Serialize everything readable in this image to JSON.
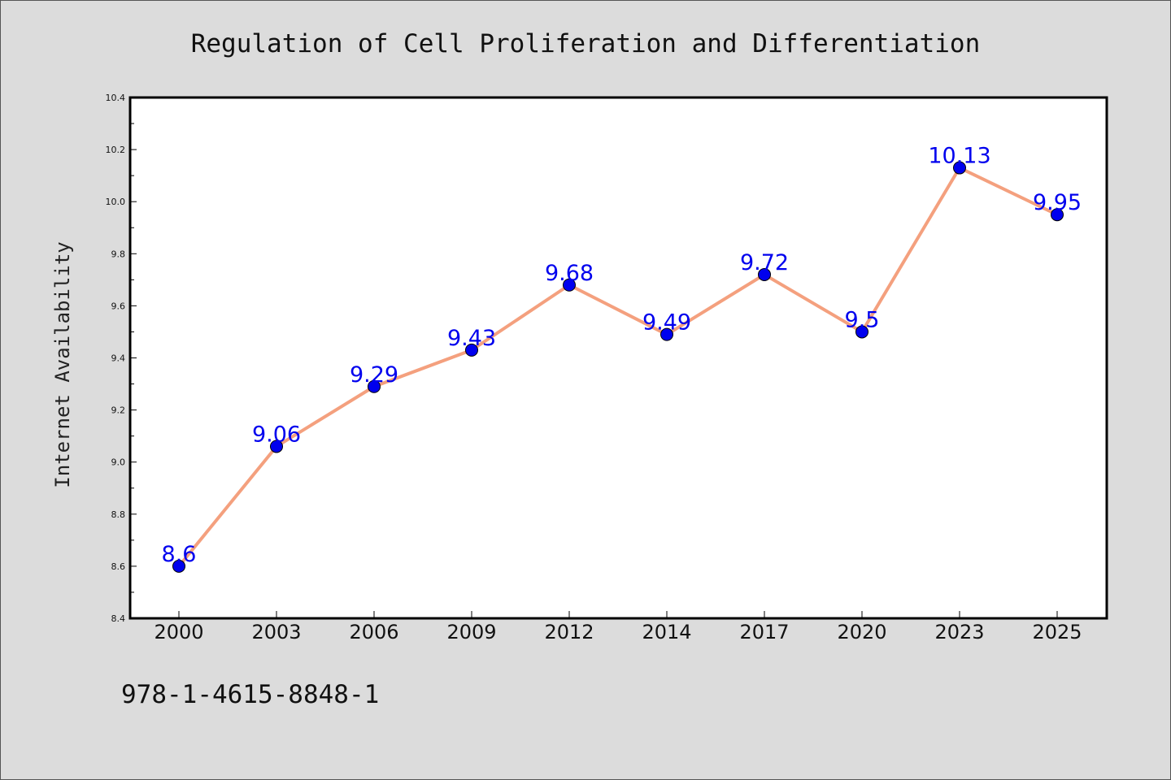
{
  "chart_data": {
    "type": "line",
    "title": "Regulation of Cell Proliferation and Differentiation",
    "xlabel": "",
    "ylabel": "Internet Availability",
    "categories": [
      "2000",
      "2003",
      "2006",
      "2009",
      "2012",
      "2014",
      "2017",
      "2020",
      "2023",
      "2025"
    ],
    "series": [
      {
        "values": [
          8.6,
          9.06,
          9.29,
          9.43,
          9.68,
          9.49,
          9.72,
          9.5,
          10.13,
          9.95
        ],
        "labels": [
          "8.6",
          "9.06",
          "9.29",
          "9.43",
          "9.68",
          "9.49",
          "9.72",
          "9.5",
          "10.13",
          "9.95"
        ],
        "line_color": "#f4a07e",
        "marker_color": "#0000ee"
      }
    ],
    "ylim": [
      8.4,
      10.4
    ],
    "y_ticks": [
      "8.4",
      "8.6",
      "8.8",
      "9.0",
      "9.2",
      "9.4",
      "9.6",
      "9.8",
      "10.0",
      "10.2",
      "10.4"
    ],
    "grid": false,
    "legend": "none"
  },
  "footer": {
    "code": "978-1-4615-8848-1"
  }
}
